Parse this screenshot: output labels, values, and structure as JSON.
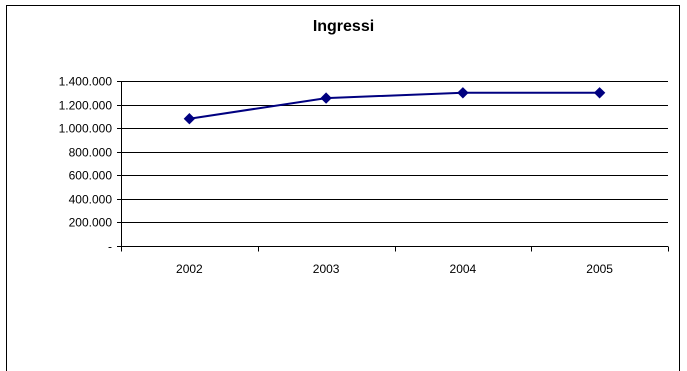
{
  "chart_data": {
    "type": "line",
    "title": "Ingressi",
    "xlabel": "",
    "ylabel": "",
    "categories": [
      "2002",
      "2003",
      "2004",
      "2005"
    ],
    "series": [
      {
        "values": [
          1080000,
          1255000,
          1300000,
          1300000
        ],
        "color": "#000080",
        "marker": "diamond"
      }
    ],
    "ylim": [
      0,
      1400000
    ],
    "yticks": [
      0,
      200000,
      400000,
      600000,
      800000,
      1000000,
      1200000,
      1400000
    ],
    "ytick_labels": [
      "-",
      "200.000",
      "400.000",
      "600.000",
      "800.000",
      "1.000.000",
      "1.200.000",
      "1.400.000"
    ],
    "grid": "horizontal",
    "legend": "none"
  }
}
